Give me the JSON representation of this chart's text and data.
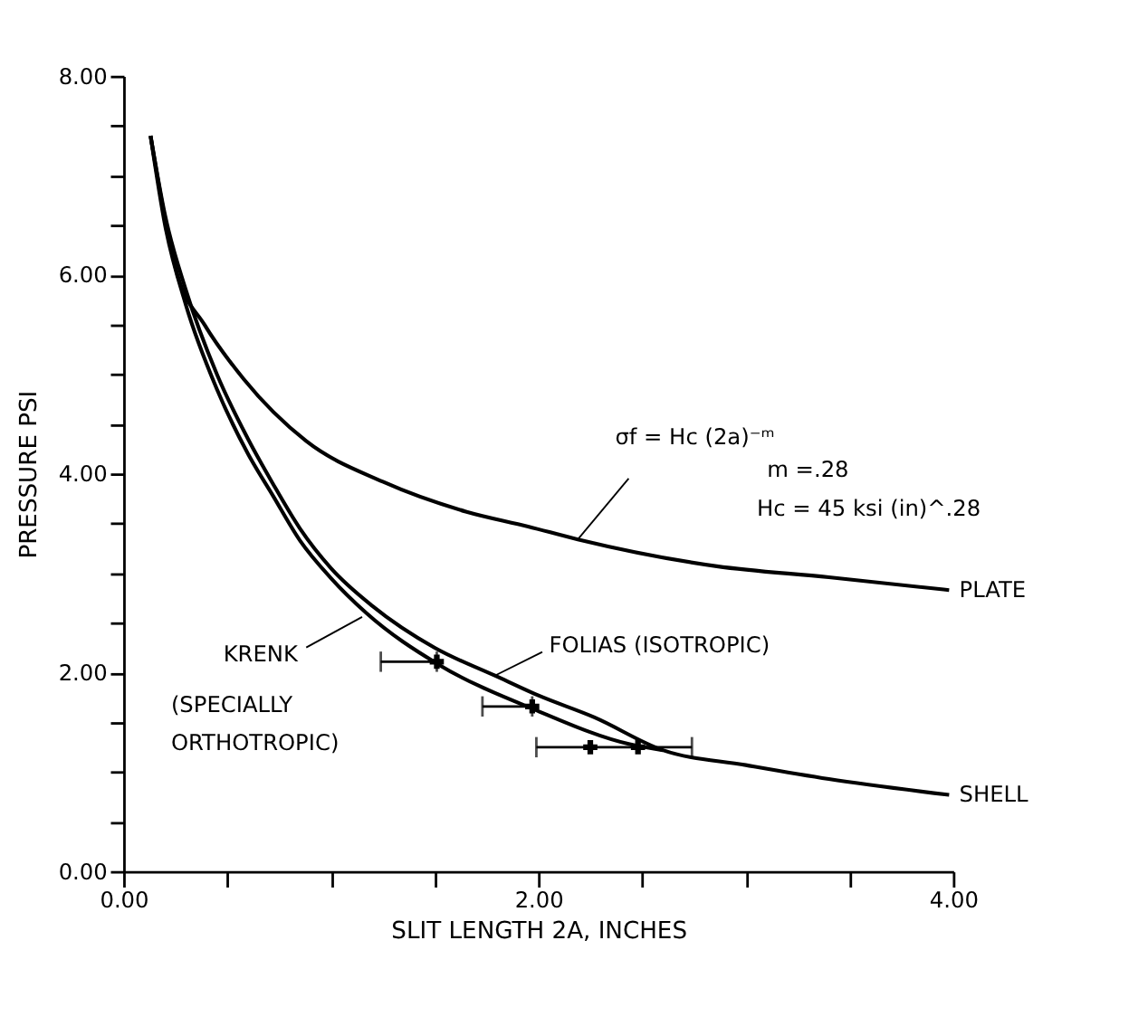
{
  "chart_data": {
    "type": "line",
    "xlabel": "SLIT LENGTH 2A, INCHES",
    "ylabel": "PRESSURE PSI",
    "xlim": [
      0,
      4
    ],
    "ylim": [
      0,
      8
    ],
    "xticks": [
      {
        "value": 0,
        "label": "0.00"
      },
      {
        "value": 0.5,
        "label": null
      },
      {
        "value": 1,
        "label": null
      },
      {
        "value": 1.5,
        "label": null
      },
      {
        "value": 2,
        "label": "2.00"
      },
      {
        "value": 2.5,
        "label": null
      },
      {
        "value": 3,
        "label": null
      },
      {
        "value": 3.5,
        "label": null
      },
      {
        "value": 4,
        "label": "4.00"
      }
    ],
    "yticks": [
      {
        "value": 0,
        "label": "0.00"
      },
      {
        "value": 0.5,
        "label": null
      },
      {
        "value": 1,
        "label": null
      },
      {
        "value": 1.5,
        "label": null
      },
      {
        "value": 2,
        "label": "2.00"
      },
      {
        "value": 2.5,
        "label": null
      },
      {
        "value": 3,
        "label": null
      },
      {
        "value": 3.5,
        "label": null
      },
      {
        "value": 4,
        "label": "4.00"
      },
      {
        "value": 4.5,
        "label": null
      },
      {
        "value": 5,
        "label": null
      },
      {
        "value": 5.5,
        "label": null
      },
      {
        "value": 6,
        "label": "6.00"
      },
      {
        "value": 6.5,
        "label": null
      },
      {
        "value": 7,
        "label": null
      },
      {
        "value": 7.5,
        "label": null
      },
      {
        "value": 8,
        "label": "8.00"
      }
    ],
    "grid": false,
    "legend": false,
    "marker": "none",
    "line_style": "solid",
    "series": [
      {
        "name": "PLATE",
        "color": "#000000",
        "x": [
          0.13,
          0.26,
          0.39,
          0.58,
          0.88,
          1.25,
          1.65,
          1.95,
          2.19,
          2.86,
          3.4,
          3.98
        ],
        "values": [
          7.4,
          6.0,
          5.5,
          4.95,
          4.33,
          3.92,
          3.62,
          3.47,
          3.34,
          3.07,
          2.96,
          2.83
        ]
      },
      {
        "name": "SHELL",
        "color": "#000000",
        "x": [
          0.13,
          0.2,
          0.3,
          0.45,
          0.6,
          0.72,
          0.85,
          1.0,
          1.2,
          1.5,
          1.79,
          2.0,
          2.27,
          2.6,
          3.0,
          3.4,
          3.98
        ],
        "values": [
          7.4,
          6.6,
          5.85,
          5.0,
          4.35,
          3.9,
          3.45,
          3.05,
          2.67,
          2.25,
          1.97,
          1.77,
          1.55,
          1.22,
          1.07,
          0.93,
          0.77
        ]
      },
      {
        "color": "#000000",
        "x": [
          0.13,
          0.2,
          0.3,
          0.45,
          0.6,
          0.72,
          0.85,
          1.0,
          1.17,
          1.52,
          1.98,
          2.44,
          2.6
        ],
        "values": [
          7.4,
          6.5,
          5.7,
          4.85,
          4.2,
          3.78,
          3.33,
          2.95,
          2.6,
          2.08,
          1.63,
          1.28,
          1.22
        ]
      },
      {
        "type": "scatter",
        "marker": "cross",
        "color": "#000000",
        "x": [
          1.51,
          1.97,
          2.25,
          2.48
        ],
        "values": [
          2.11,
          1.66,
          1.25,
          1.25
        ],
        "xerrors": [
          [
            1.24,
            1.51
          ],
          [
            1.73,
            1.97
          ],
          [
            1.99,
            2.74
          ],
          null
        ]
      }
    ],
    "annotations": [
      {
        "text": "σf = Hc (2a)⁻ᵐ",
        "x": 2.19,
        "y": 3.34
      },
      "m =.28",
      "Hc = 45 ksi (in)^.28",
      {
        "text": "KRENK",
        "x": 1.15,
        "y": 2.56
      },
      {
        "text": "FOLIAS (ISOTROPIC)",
        "x": 1.79,
        "y": 1.97
      },
      "(SPECIALLY",
      "ORTHOTROPIC)"
    ]
  }
}
